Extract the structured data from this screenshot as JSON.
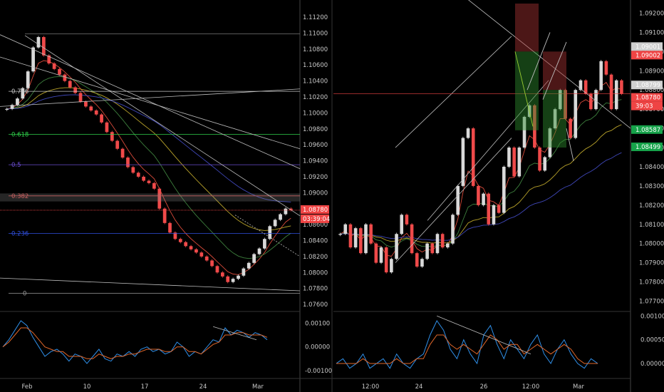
{
  "colors": {
    "background": "#000000",
    "bull": "#d9d9d9",
    "bear": "#ef4a4a",
    "ema_fast": "#d84a3a",
    "ema_mid": "#3d7f3d",
    "ema_slow": "#b8a22a",
    "ema_long": "#3f47b8",
    "macd": "#2f8fe8",
    "signal": "#e0672a",
    "trend": "#bdbdbd",
    "fib_0618": "#2fd04a",
    "fib_05": "#6a4cd0",
    "fib_0382": "#e05050",
    "fib_0236": "#3050e0",
    "green_badge": "#16a34a",
    "red_badge": "#ef4444",
    "grey_badge": "#cfcfcf"
  },
  "chart_data": [
    {
      "type": "line",
      "panel": "left-price",
      "yaxis": {
        "ticks": [
          "1.11200",
          "1.11000",
          "1.10800",
          "1.10600",
          "1.10400",
          "1.10200",
          "1.10000",
          "1.09800",
          "1.09600",
          "1.09400",
          "1.09200",
          "1.09000",
          "1.08800",
          "1.08600",
          "1.08400",
          "1.08200",
          "1.08000",
          "1.07800",
          "1.07600"
        ],
        "ylim": [
          1.0752,
          1.1137
        ]
      },
      "xaxis": {
        "ticks": [
          "Feb",
          "10",
          "17",
          "24",
          "Mar"
        ]
      },
      "fib_levels": [
        {
          "label": "0.786",
          "value": 1.1027
        },
        {
          "label": "0.618",
          "value": 1.0973
        },
        {
          "label": "0.5",
          "value": 1.0935
        },
        {
          "label": "0.382",
          "value": 1.0896
        },
        {
          "label": "0.236",
          "value": 1.0849
        },
        {
          "label": "0",
          "value": 1.0774
        }
      ],
      "series": [
        {
          "values": [
            1.1005,
            1.101,
            1.1018,
            1.1031,
            1.1052,
            1.1082,
            1.1095,
            1.1072,
            1.1062,
            1.1055,
            1.1048,
            1.104,
            1.1032,
            1.1025,
            1.1014,
            1.1008,
            1.1003,
            1.0998,
            1.0988,
            1.0976,
            1.0965,
            1.0955,
            1.0944,
            1.0932,
            1.0925,
            1.092,
            1.0915,
            1.0912,
            1.0905,
            1.088,
            1.0862,
            1.085,
            1.0842,
            1.0838,
            1.0833,
            1.0829,
            1.0825,
            1.082,
            1.0815,
            1.0808,
            1.08,
            1.0795,
            1.0788,
            1.0792,
            1.0796,
            1.0805,
            1.0812,
            1.0823,
            1.083,
            1.0842,
            1.0858,
            1.0866,
            1.0873,
            1.088,
            1.0878
          ]
        }
      ],
      "current_price": "1.08780",
      "countdown": "03:39:04"
    },
    {
      "type": "line",
      "panel": "right-price",
      "yaxis": {
        "ticks": [
          "1.09200",
          "1.09100",
          "1.09000",
          "1.08900",
          "1.08800",
          "1.08700",
          "1.08600",
          "1.08500",
          "1.08400",
          "1.08300",
          "1.08200",
          "1.08100",
          "1.08000",
          "1.07900",
          "1.07800",
          "1.07700"
        ],
        "ylim": [
          1.0765,
          1.0925
        ]
      },
      "xaxis": {
        "ticks": [
          "12:00",
          "24",
          "26",
          "12:00",
          "Mar"
        ]
      },
      "series": [
        {
          "values": [
            1.0805,
            1.081,
            1.0798,
            1.0808,
            1.0795,
            1.081,
            1.08,
            1.079,
            1.0798,
            1.0785,
            1.0792,
            1.0805,
            1.0815,
            1.081,
            1.0795,
            1.0788,
            1.0792,
            1.08,
            1.0795,
            1.0805,
            1.0798,
            1.08,
            1.0815,
            1.083,
            1.0855,
            1.086,
            1.083,
            1.082,
            1.0826,
            1.081,
            1.082,
            1.0816,
            1.084,
            1.085,
            1.0835,
            1.085,
            1.0866,
            1.0872,
            1.085,
            1.0838,
            1.0845,
            1.086,
            1.087,
            1.088,
            1.0865,
            1.0855,
            1.088,
            1.0885,
            1.0878,
            1.087,
            1.088,
            1.0895,
            1.0888,
            1.087,
            1.0885,
            1.0878
          ]
        }
      ],
      "price_labels": [
        "1.09001",
        "1.09002",
        "1.08799",
        "1.08780",
        "39:03",
        "1.08587",
        "1.08499"
      ]
    },
    {
      "type": "line",
      "panel": "left-macd",
      "yaxis": {
        "ticks": [
          "0.00100",
          "0.00000",
          "-0.00100"
        ],
        "ylim": [
          -0.0013,
          0.0014
        ]
      },
      "series": [
        {
          "values": [
            0.0,
            0.0003,
            0.0007,
            0.0011,
            0.0009,
            0.0004,
            0.0,
            -0.0004,
            -0.0002,
            -0.0001,
            -0.0003,
            -0.0006,
            -0.0003,
            -0.0004,
            -0.0007,
            -0.0004,
            -0.0001,
            -0.0005,
            -0.0006,
            -0.0003,
            -0.0004,
            -0.0002,
            -0.0004,
            -0.0001,
            0.0,
            -0.0002,
            -0.0001,
            -0.0003,
            -0.0002,
            0.0002,
            0.0,
            -0.0004,
            -0.0002,
            -0.0003,
            0.0,
            0.0003,
            0.0002,
            0.0008,
            0.0005,
            0.0007,
            0.0006,
            0.0004,
            0.0006,
            0.0005,
            0.0003
          ]
        },
        {
          "values": [
            0.0,
            0.0002,
            0.0005,
            0.0008,
            0.0008,
            0.0006,
            0.0003,
            0.0,
            -0.0001,
            -0.0002,
            -0.0002,
            -0.0004,
            -0.0004,
            -0.0004,
            -0.0005,
            -0.0005,
            -0.0003,
            -0.0004,
            -0.0005,
            -0.0004,
            -0.0004,
            -0.0003,
            -0.0003,
            -0.0002,
            -0.0001,
            -0.0001,
            -0.0001,
            -0.0002,
            -0.0002,
            0.0,
            0.0,
            -0.0002,
            -0.0002,
            -0.0003,
            -0.0001,
            0.0001,
            0.0002,
            0.0005,
            0.0005,
            0.0006,
            0.0006,
            0.0005,
            0.0005,
            0.0005,
            0.0004
          ]
        }
      ]
    },
    {
      "type": "line",
      "panel": "right-macd",
      "yaxis": {
        "ticks": [
          "0.00100",
          "0.00050",
          "0.00000"
        ],
        "ylim": [
          -0.0003,
          0.00105
        ]
      },
      "series": [
        {
          "values": [
            0.0,
            0.0001,
            -0.0001,
            0.0,
            0.0002,
            -0.0001,
            0.0,
            0.0001,
            -0.0001,
            0.0002,
            0.0,
            -0.0001,
            0.0001,
            0.0002,
            0.0006,
            0.0009,
            0.0007,
            0.0003,
            0.0001,
            0.0005,
            0.0002,
            0.0,
            0.0006,
            0.0008,
            0.0004,
            0.0001,
            0.0005,
            0.0003,
            0.0001,
            0.0004,
            0.0006,
            0.0002,
            0.0,
            0.0003,
            0.0005,
            0.0002,
            0.0,
            -0.0001,
            0.0001,
            0.0
          ]
        },
        {
          "values": [
            0.0,
            0.0,
            0.0,
            0.0,
            0.0001,
            0.0,
            0.0,
            0.0,
            0.0,
            0.0001,
            0.0,
            0.0,
            0.0001,
            0.0001,
            0.0004,
            0.0006,
            0.0006,
            0.0004,
            0.0003,
            0.0004,
            0.0003,
            0.0002,
            0.0004,
            0.0006,
            0.0005,
            0.0003,
            0.0004,
            0.0004,
            0.0002,
            0.0003,
            0.0004,
            0.0003,
            0.0002,
            0.0003,
            0.0004,
            0.0003,
            0.0001,
            0.0,
            0.0,
            0.0
          ]
        }
      ]
    }
  ]
}
